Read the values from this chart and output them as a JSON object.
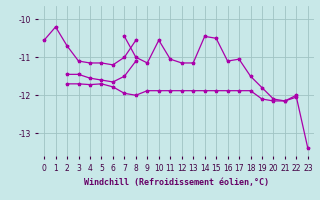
{
  "xlabel": "Windchill (Refroidissement éolien,°C)",
  "bg_color": "#c8e8e8",
  "line_color": "#aa00aa",
  "grid_color": "#a0c4c4",
  "ylim": [
    -13.6,
    -9.65
  ],
  "xlim": [
    -0.5,
    23.5
  ],
  "yticks": [
    -13,
    -12,
    -11,
    -10
  ],
  "series_A": {
    "x": [
      0,
      1,
      2,
      3,
      4,
      5,
      6,
      7,
      8
    ],
    "y": [
      -10.55,
      -10.2,
      -10.7,
      -11.1,
      -11.15,
      -11.15,
      -11.2,
      -11.0,
      -10.55
    ]
  },
  "series_B": {
    "x": [
      2,
      3,
      4,
      5,
      6,
      7,
      8
    ],
    "y": [
      -11.45,
      -11.45,
      -11.55,
      -11.6,
      -11.65,
      -11.5,
      -11.1
    ]
  },
  "series_C": {
    "x": [
      2,
      3,
      4,
      5,
      6,
      7,
      8,
      9,
      10,
      11,
      12,
      13,
      14,
      15,
      16,
      17,
      18,
      19,
      20,
      21,
      22,
      23
    ],
    "y": [
      -11.7,
      -11.7,
      -11.72,
      -11.7,
      -11.78,
      -11.95,
      -12.0,
      -11.88,
      -11.88,
      -11.88,
      -11.88,
      -11.88,
      -11.88,
      -11.88,
      -11.88,
      -11.88,
      -11.88,
      -12.1,
      -12.15,
      -12.15,
      -12.05,
      -13.4
    ]
  },
  "series_D": {
    "x": [
      7,
      8,
      9,
      10,
      11,
      12,
      13,
      14,
      15,
      16,
      17,
      18,
      19,
      20,
      21,
      22
    ],
    "y": [
      -10.45,
      -11.0,
      -11.15,
      -10.55,
      -11.05,
      -11.15,
      -11.15,
      -10.45,
      -10.5,
      -11.1,
      -11.05,
      -11.5,
      -11.8,
      -12.1,
      -12.15,
      -12.0
    ]
  },
  "xlabel_color": "#660066",
  "tick_color": "#440044"
}
